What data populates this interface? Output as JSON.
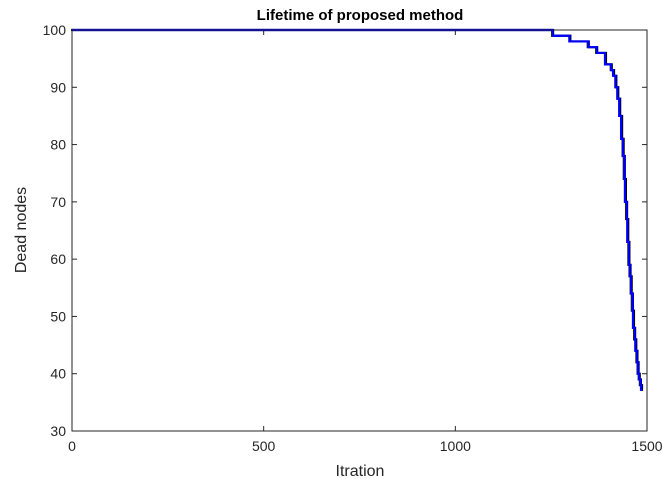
{
  "chart_data": {
    "type": "line",
    "title": "Lifetime of proposed method",
    "xlabel": "Itration",
    "ylabel": "Dead nodes",
    "xlim": [
      0,
      1500
    ],
    "ylim": [
      30,
      100
    ],
    "xticks": [
      0,
      500,
      1000,
      1500
    ],
    "yticks": [
      30,
      40,
      50,
      60,
      70,
      80,
      90,
      100
    ],
    "xtick_labels": [
      "0",
      "500",
      "1000",
      "1500"
    ],
    "ytick_labels": [
      "30",
      "40",
      "50",
      "60",
      "70",
      "80",
      "90",
      "100"
    ],
    "grid": false,
    "series": [
      {
        "color": "#0000ff",
        "step": true,
        "x": [
          0,
          1255,
          1270,
          1300,
          1330,
          1348,
          1370,
          1393,
          1408,
          1414,
          1420,
          1425,
          1430,
          1435,
          1439,
          1442,
          1445,
          1448,
          1451,
          1454,
          1457,
          1460,
          1463,
          1466,
          1469,
          1472,
          1475,
          1478,
          1481,
          1484,
          1487
        ],
        "y": [
          100,
          99,
          99,
          98,
          98,
          97,
          96,
          94,
          93,
          92,
          90,
          88,
          85,
          81,
          78,
          74,
          70,
          67,
          63,
          59,
          57,
          54,
          51,
          48,
          46,
          44,
          42,
          40,
          39,
          38,
          37
        ]
      }
    ]
  }
}
